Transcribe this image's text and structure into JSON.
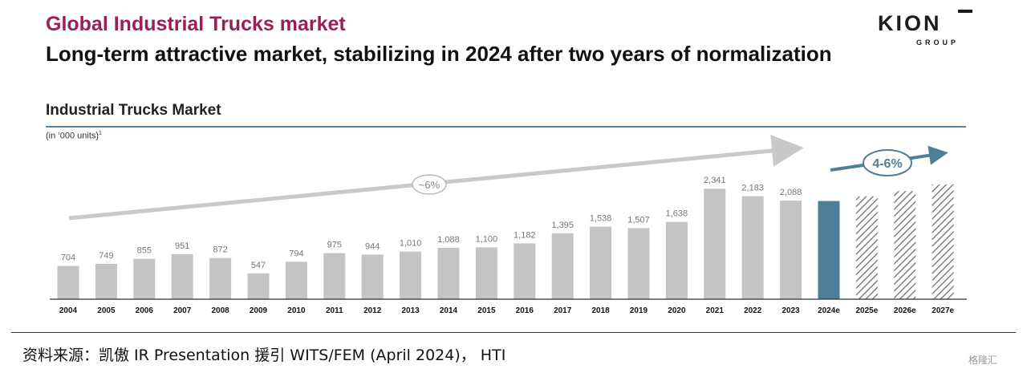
{
  "header": {
    "title": "Global Industrial Trucks market",
    "subtitle": "Long-term attractive market, stabilizing in 2024 after two years of normalization"
  },
  "logo": {
    "main": "KION",
    "sub": "GROUP"
  },
  "section": {
    "title": "Industrial Trucks Market",
    "unit_note": "(in ‘000 units)",
    "unit_note_sup": "1"
  },
  "chart_data": {
    "type": "bar",
    "title": "Industrial Trucks Market",
    "ylabel": "(in ‘000 units)",
    "ylim": [
      0,
      2600
    ],
    "categories": [
      "2004",
      "2005",
      "2006",
      "2007",
      "2008",
      "2009",
      "2010",
      "2011",
      "2012",
      "2013",
      "2014",
      "2015",
      "2016",
      "2017",
      "2018",
      "2019",
      "2020",
      "2021",
      "2022",
      "2023",
      "2024e",
      "2025e",
      "2026e",
      "2027e"
    ],
    "values": [
      704,
      749,
      855,
      951,
      872,
      547,
      794,
      975,
      944,
      1010,
      1088,
      1100,
      1182,
      1395,
      1538,
      1507,
      1638,
      2341,
      2183,
      2088,
      2080,
      2180,
      2290,
      2430
    ],
    "value_labels": [
      "704",
      "749",
      "855",
      "951",
      "872",
      "547",
      "794",
      "975",
      "944",
      "1,010",
      "1,088",
      "1,100",
      "1,182",
      "1,395",
      "1,538",
      "1,507",
      "1,638",
      "2,341",
      "2,183",
      "2,088",
      "",
      "",
      "",
      ""
    ],
    "bar_styles": [
      "actual",
      "actual",
      "actual",
      "actual",
      "actual",
      "actual",
      "actual",
      "actual",
      "actual",
      "actual",
      "actual",
      "actual",
      "actual",
      "actual",
      "actual",
      "actual",
      "actual",
      "actual",
      "actual",
      "actual",
      "estimate",
      "forecast",
      "forecast",
      "forecast"
    ],
    "colors": {
      "actual": "#c4c4c4",
      "estimate": "#4f7f97",
      "forecast_stripe": "#6a6a6a",
      "trend_arrow": "#c9c9c9",
      "forecast_arrow": "#4f7f97"
    },
    "annotations": {
      "long_term_growth": "~6%",
      "forecast_growth": "4-6%"
    }
  },
  "footer": {
    "source": "资料来源：凯傲 IR Presentation 援引 WITS/FEM (April 2024)， HTI",
    "watermark": "格隆汇"
  }
}
